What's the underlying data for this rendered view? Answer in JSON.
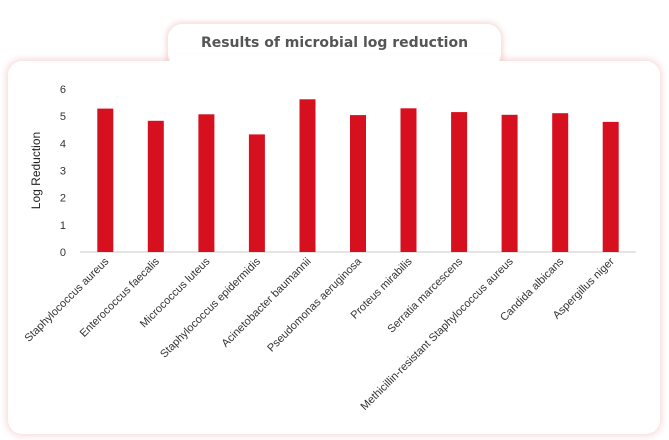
{
  "chart_data": {
    "type": "bar",
    "title": "Results of microbial log reduction",
    "xlabel": "",
    "ylabel": "Log Reduction",
    "ylim": [
      0,
      6
    ],
    "yticks": [
      0,
      1,
      2,
      3,
      4,
      5,
      6
    ],
    "grid": false,
    "legend": "none",
    "bar_color": "#d7101f",
    "categories": [
      "Staphylococcus aureus",
      "Enterococcus faecalis",
      "Micrococcus luteus",
      "Staphylococcus epidermidis",
      "Acinetobacter baumannii",
      "Pseudomonas aeruginosa",
      "Proteus mirabilis",
      "Serratia marcescens",
      "Methicillin-resistant Staphylococcus aureus",
      "Candida albicans",
      "Aspergillus niger"
    ],
    "values": [
      5.28,
      4.83,
      5.07,
      4.33,
      5.62,
      5.04,
      5.29,
      5.15,
      5.05,
      5.11,
      4.79
    ]
  }
}
